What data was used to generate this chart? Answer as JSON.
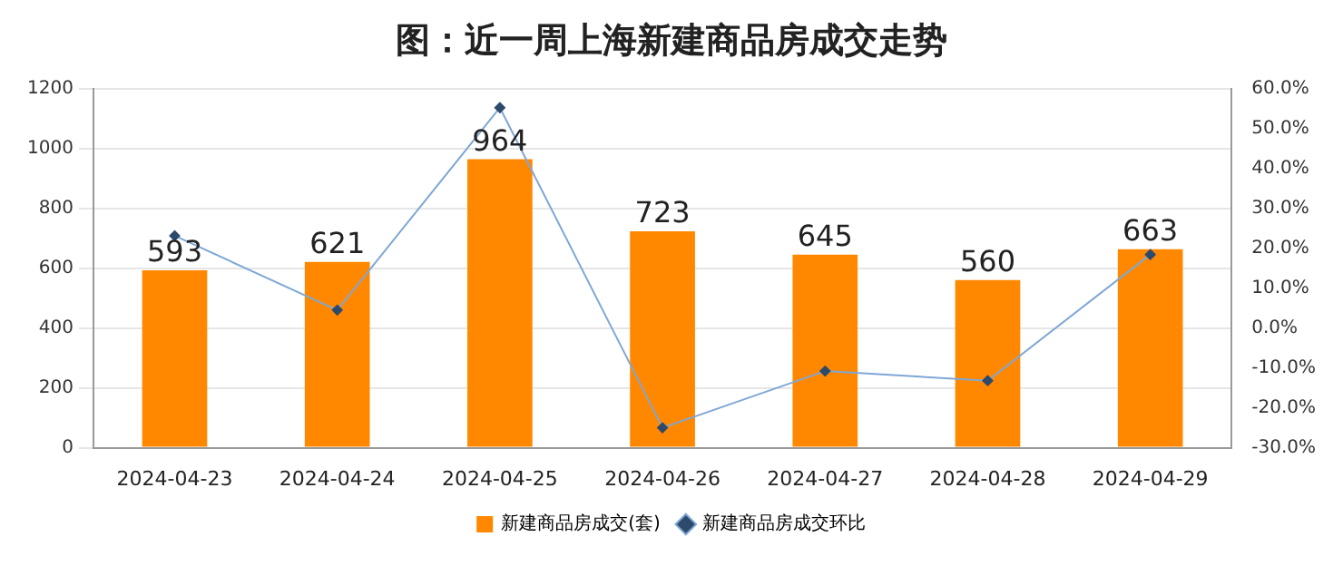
{
  "chart_data": {
    "type": "bar",
    "title": "图：近一周上海新建商品房成交走势",
    "categories": [
      "2024-04-23",
      "2024-04-24",
      "2024-04-25",
      "2024-04-26",
      "2024-04-27",
      "2024-04-28",
      "2024-04-29"
    ],
    "series": [
      {
        "name": "新建商品房成交(套)",
        "color": "#ff8800",
        "values": [
          593,
          621,
          964,
          723,
          645,
          560,
          663
        ],
        "value_labels": [
          "593",
          "621",
          "964",
          "723",
          "645",
          "560",
          "663"
        ]
      },
      {
        "name": "新建商品房成交环比",
        "type": "line",
        "axis": "y2",
        "color": "#7fa7d6",
        "values": [
          23.1,
          4.5,
          55.2,
          -25.0,
          -10.8,
          -13.2,
          18.4
        ]
      }
    ],
    "ylim": [
      0,
      1200
    ],
    "yticks": [
      0,
      200,
      400,
      600,
      800,
      1000,
      1200
    ],
    "y2lim": [
      -30,
      60
    ],
    "y2ticks": [
      {
        "value": -30,
        "label": "-30.0%"
      },
      {
        "value": -20,
        "label": "-20.0%"
      },
      {
        "value": -10,
        "label": "-10.0%"
      },
      {
        "value": 0,
        "label": "0.0%"
      },
      {
        "value": 10,
        "label": "10.0%"
      },
      {
        "value": 20,
        "label": "20.0%"
      },
      {
        "value": 30,
        "label": "30.0%"
      },
      {
        "value": 40,
        "label": "40.0%"
      },
      {
        "value": 50,
        "label": "50.0%"
      },
      {
        "value": 60,
        "label": "60.0%"
      }
    ],
    "grid": "y",
    "legend": "bottom",
    "marker": "diamond",
    "line_style": "solid"
  }
}
